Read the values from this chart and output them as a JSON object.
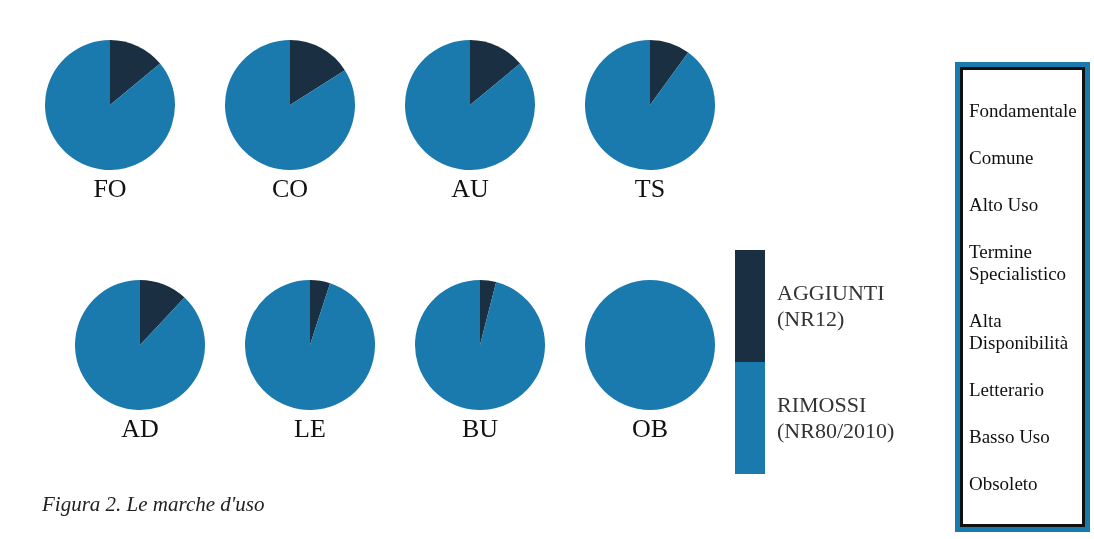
{
  "chart_data": [
    {
      "type": "pie",
      "title": "FO",
      "categories": [
        null,
        null
      ],
      "values": [
        14,
        86
      ],
      "colors": [
        "#1b2f42",
        "#1a7aad"
      ],
      "annotations": [
        "Figura 2. Le marche d'uso"
      ]
    },
    {
      "type": "pie",
      "title": "CO",
      "categories": [
        null,
        null
      ],
      "values": [
        16,
        84
      ],
      "colors": [
        "#1b2f42",
        "#1a7aad"
      ]
    },
    {
      "type": "pie",
      "title": "AU",
      "categories": [
        null,
        null
      ],
      "values": [
        14,
        86
      ],
      "colors": [
        "#1b2f42",
        "#1a7aad"
      ]
    },
    {
      "type": "pie",
      "title": "TS",
      "categories": [
        null,
        null
      ],
      "values": [
        10,
        90
      ],
      "colors": [
        "#1b2f42",
        "#1a7aad"
      ]
    },
    {
      "type": "pie",
      "title": "AD",
      "categories": [
        null,
        null
      ],
      "values": [
        12,
        88
      ],
      "colors": [
        "#1b2f42",
        "#1a7aad"
      ]
    },
    {
      "type": "pie",
      "title": "LE",
      "categories": [
        null,
        null
      ],
      "values": [
        5,
        95
      ],
      "colors": [
        "#1b2f42",
        "#1a7aad"
      ]
    },
    {
      "type": "pie",
      "title": "BU",
      "categories": [
        null,
        null
      ],
      "values": [
        4,
        96
      ],
      "colors": [
        "#1b2f42",
        "#1a7aad"
      ]
    },
    {
      "type": "pie",
      "title": "OB",
      "categories": [
        null,
        null
      ],
      "values": [
        0,
        100
      ],
      "colors": [
        "#1b2f42",
        "#1a7aad"
      ]
    },
    {
      "type": "other",
      "annotations": [
        "AGGIUNTI (NR12)",
        "RIMOSSI (NR80/2010)"
      ]
    },
    {
      "type": "other",
      "annotations": [
        "Fondamentale",
        "Comune",
        "Alto Uso",
        "Termine Specialistico",
        "Alta Disponibilità",
        "Letterario",
        "Basso Uso",
        "Obsoleto"
      ]
    }
  ]
}
